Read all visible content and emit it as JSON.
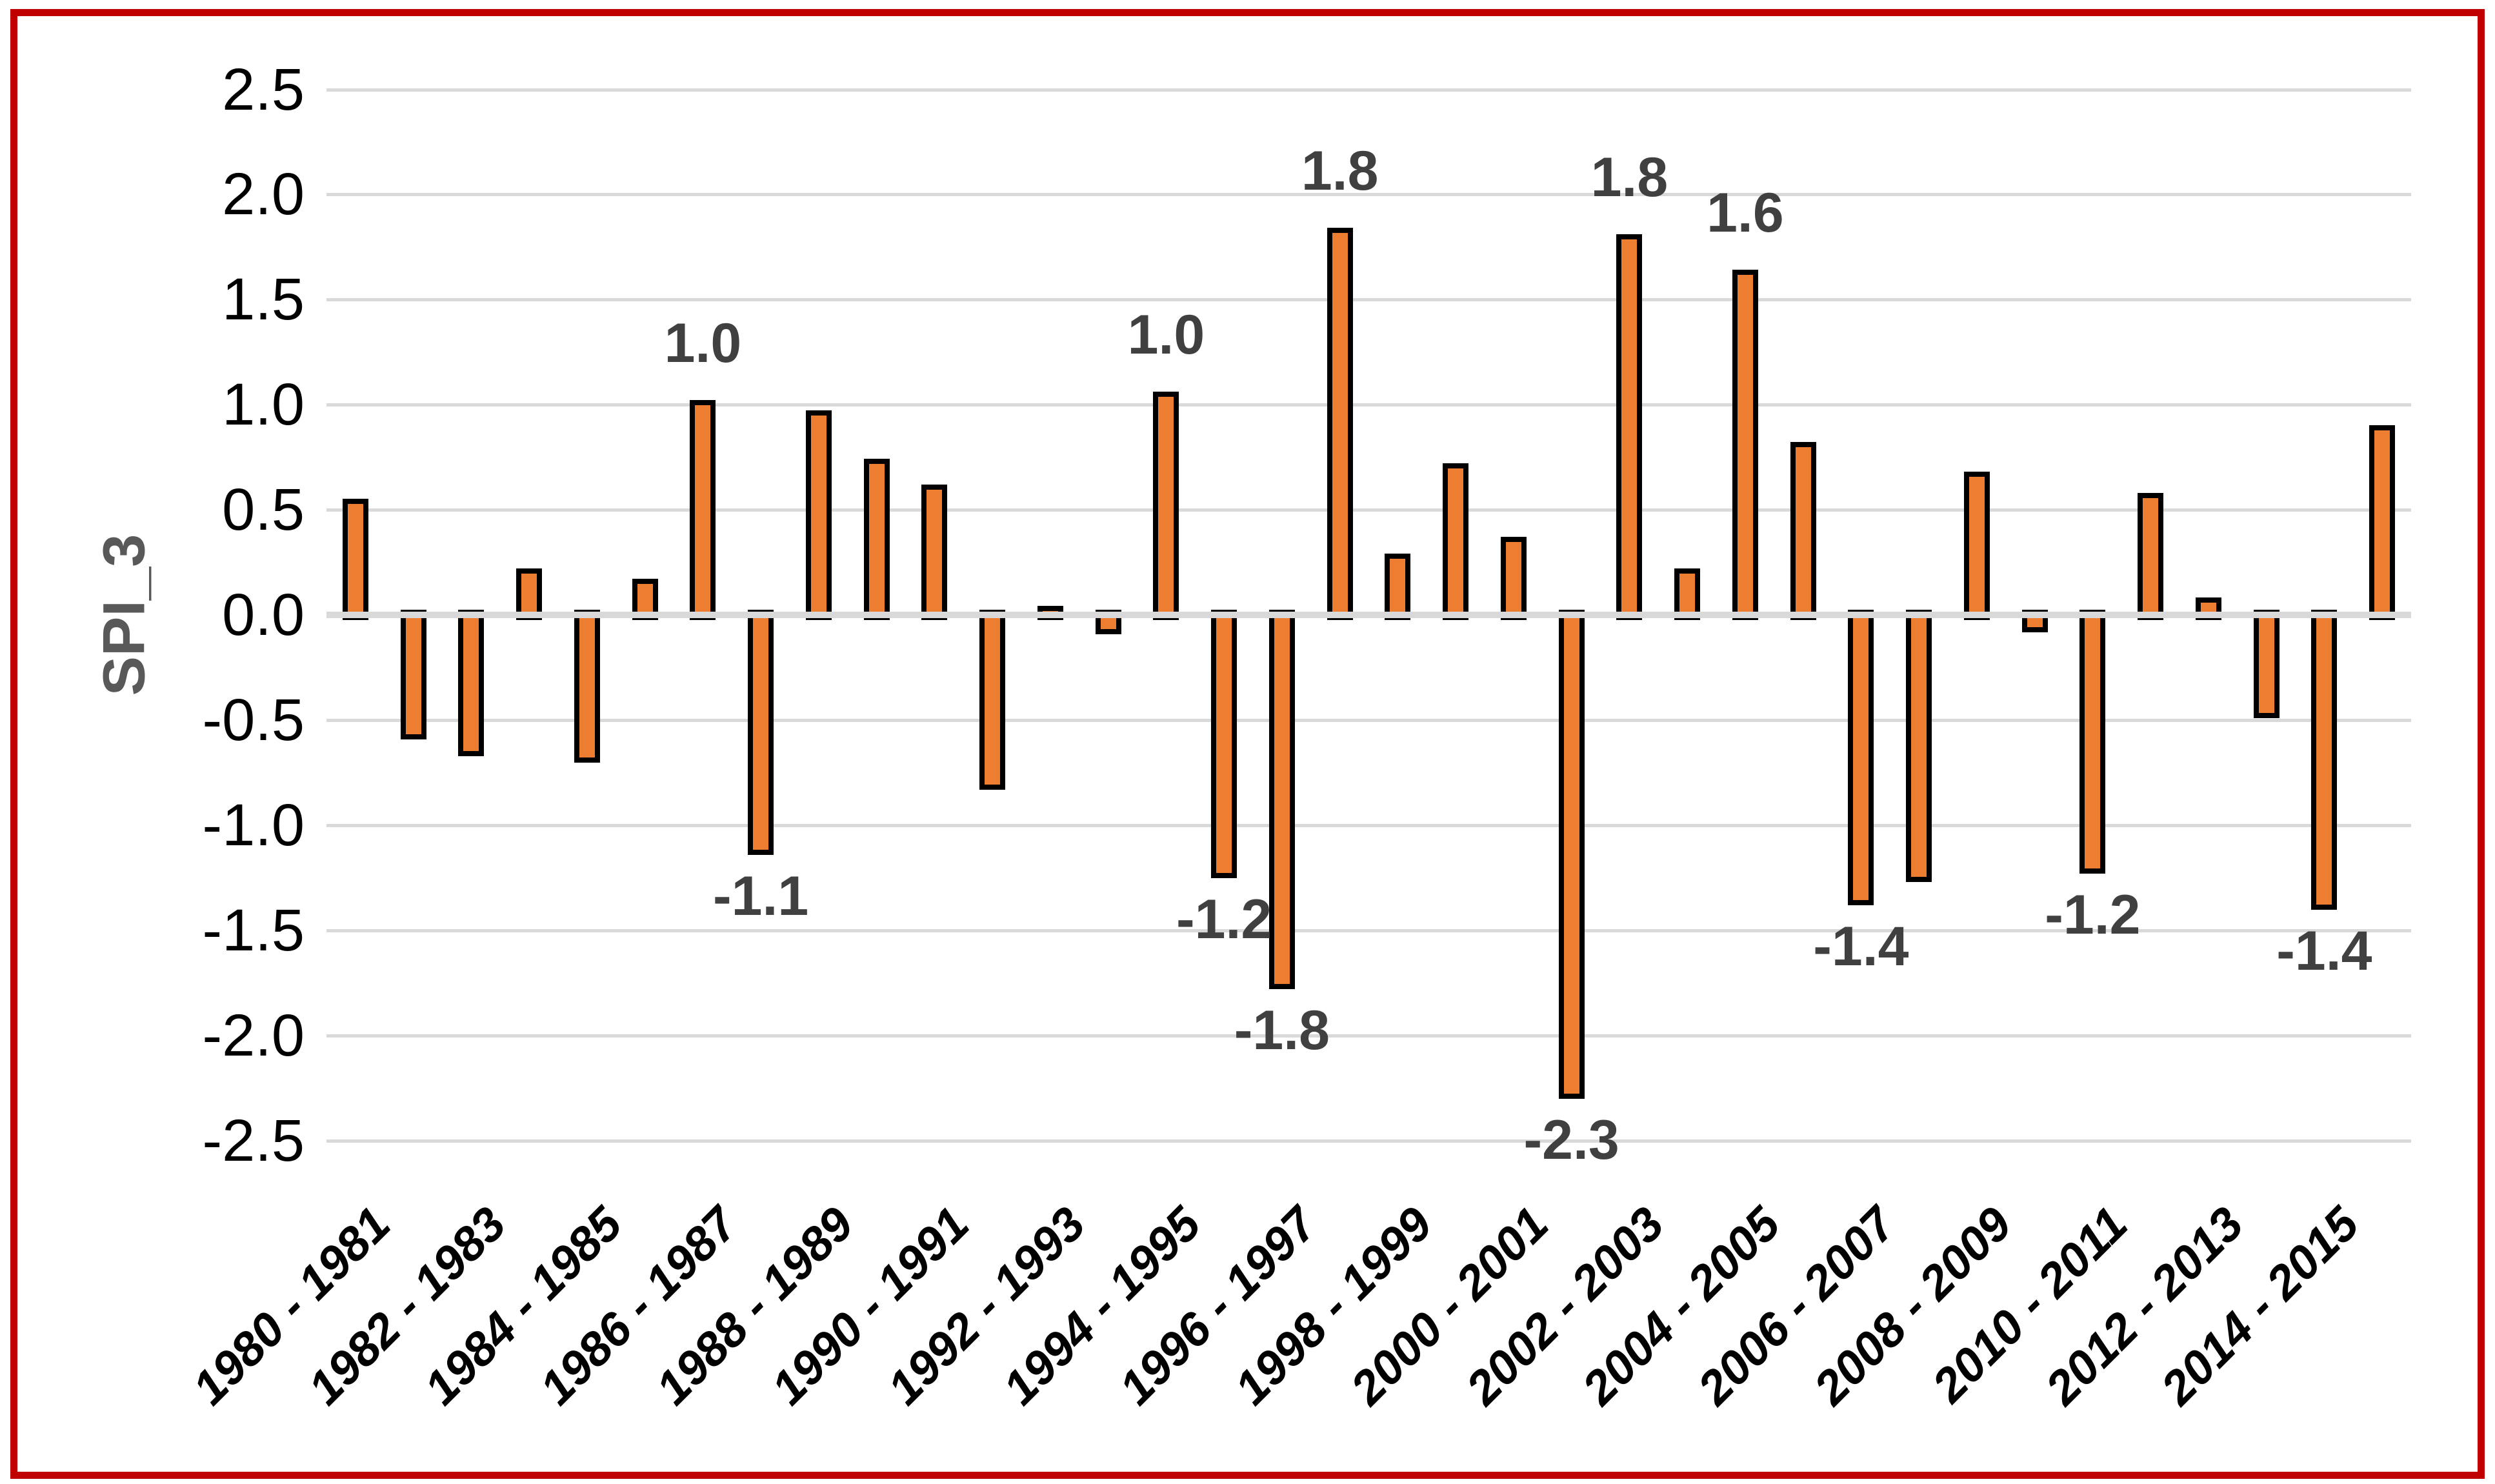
{
  "chart_data": {
    "type": "bar",
    "title": "",
    "xlabel": "",
    "ylabel": "SPI_3",
    "ylim": [
      -2.5,
      2.5
    ],
    "ytick_step": 0.5,
    "yticks": [
      "2.5",
      "2.0",
      "1.5",
      "1.0",
      "0.5",
      "0.0",
      "-0.5",
      "-1.0",
      "-1.5",
      "-2.0",
      "-2.5"
    ],
    "grid": true,
    "legend": "none",
    "categories": [
      "1980 - 1981",
      "1982 - 1983",
      "1984 - 1985",
      "1986 - 1987",
      "1988 - 1989",
      "1990 - 1991",
      "1992 - 1993",
      "1994 - 1995",
      "1996 - 1997",
      "1998 - 1999",
      "2000 - 2001",
      "2002 - 2003",
      "2004 - 2005",
      "2006 - 2007",
      "2008 - 2009",
      "2010 - 2011",
      "2012 - 2013",
      "2014 - 2015"
    ],
    "x_years": [
      1980,
      1981,
      1982,
      1983,
      1984,
      1985,
      1986,
      1987,
      1988,
      1989,
      1990,
      1991,
      1992,
      1993,
      1994,
      1995,
      1996,
      1997,
      1998,
      1999,
      2000,
      2001,
      2002,
      2003,
      2004,
      2005,
      2006,
      2007,
      2008,
      2009,
      2010,
      2011,
      2012,
      2013,
      2014,
      2015
    ],
    "values": [
      0.53,
      -0.57,
      -0.65,
      0.2,
      -0.68,
      0.15,
      1.0,
      -1.12,
      0.95,
      0.72,
      0.6,
      -0.81,
      0.02,
      -0.07,
      1.04,
      -1.23,
      -1.76,
      1.82,
      0.27,
      0.7,
      0.35,
      -2.28,
      1.79,
      0.2,
      1.62,
      0.8,
      -1.36,
      -1.25,
      0.66,
      -0.06,
      -1.21,
      0.56,
      0.06,
      -0.47,
      -1.38,
      0.88
    ],
    "point_labels": [
      null,
      null,
      null,
      null,
      null,
      null,
      "1.0",
      "-1.1",
      null,
      null,
      null,
      null,
      null,
      null,
      "1.0",
      "-1.2",
      "-1.8",
      "1.8",
      null,
      null,
      null,
      "-2.3",
      "1.8",
      null,
      "1.6",
      null,
      "-1.4",
      null,
      null,
      null,
      "-1.2",
      null,
      null,
      null,
      "-1.4",
      null
    ],
    "colors": {
      "bar_fill": "#ED7D31",
      "bar_border": "#000000",
      "data_label": "#404040",
      "axis_title": "#595959",
      "tick_label": "#000000",
      "gridline": "#D9D9D9",
      "zero_axis": "#D9D9D9",
      "frame_border": "#C00000",
      "background": "#FFFFFF"
    }
  }
}
